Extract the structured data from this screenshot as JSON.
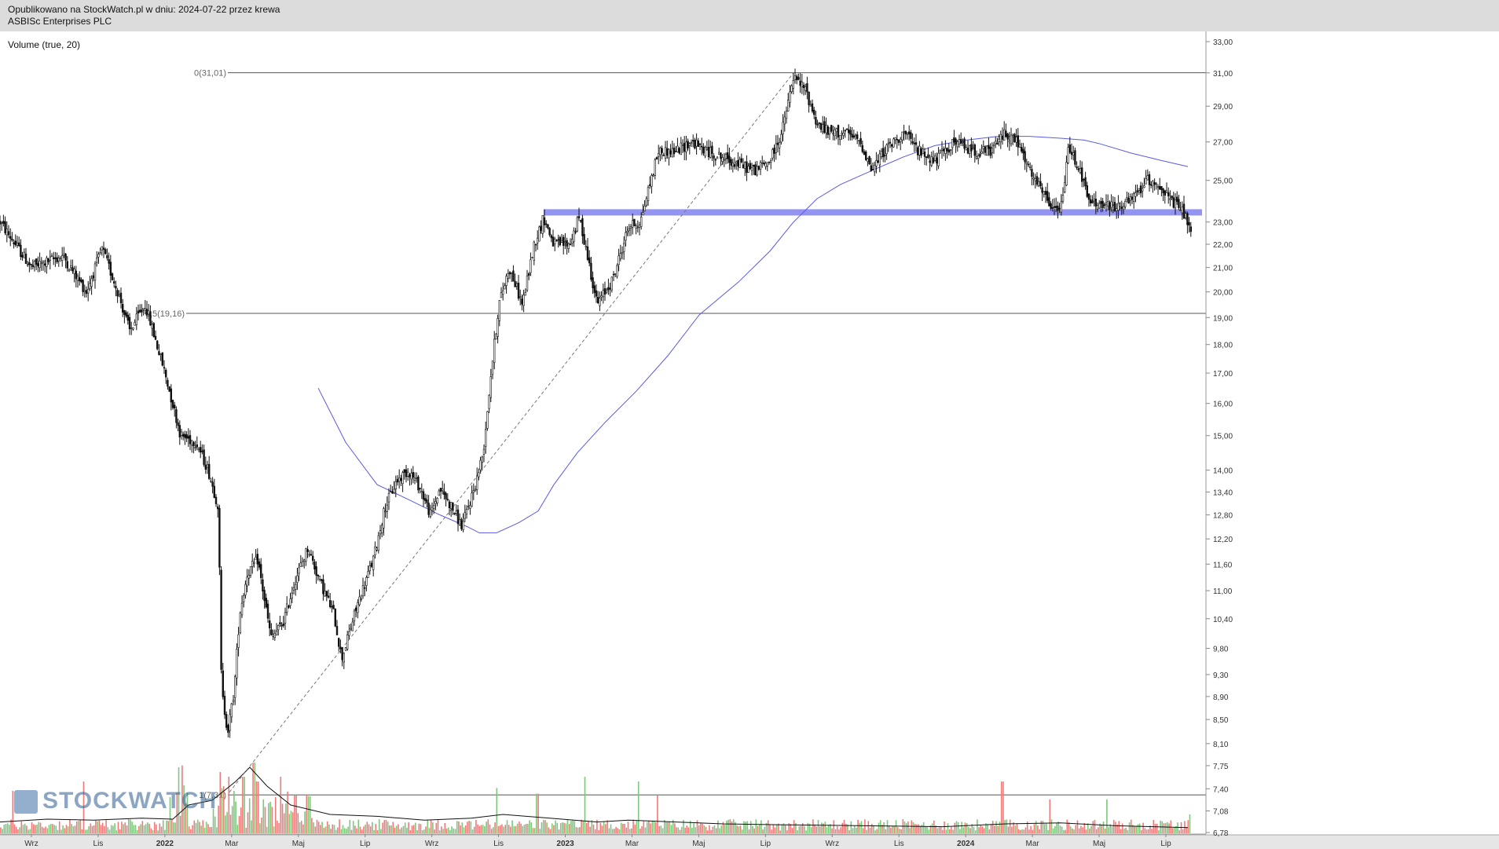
{
  "header": {
    "publication": "Opublikowano na StockWatch.pl w dniu: 2024-07-22 przez krewa",
    "instrument": "ASBISc Enterprises PLC"
  },
  "indicator_label": "Volume (true, 20)",
  "watermark": "STOCKWATCH",
  "colors": {
    "candle": "#111111",
    "ma": "#5a5ae6",
    "zone": "#8080f0",
    "vol_up": "#7cc77c",
    "vol_down": "#ee7b7b",
    "fib_line": "#555555",
    "trend": "#777777"
  },
  "chart_data": {
    "type": "candlestick",
    "y_scale": "log",
    "price_axis_ticks": [
      "33,00",
      "31,00",
      "29,00",
      "27,00",
      "25,00",
      "23,00",
      "22,00",
      "21,00",
      "20,00",
      "19,00",
      "18,00",
      "17,00",
      "16,00",
      "15,00",
      "14,00",
      "13,40",
      "12,80",
      "12,20",
      "11,60",
      "11,00",
      "10,40",
      "9,80",
      "9,30",
      "8,90",
      "8,50",
      "8,10",
      "7,75",
      "7,40",
      "7,08",
      "6,78"
    ],
    "time_axis_labels": [
      "Wrz",
      "Lis",
      "2022",
      "Mar",
      "Maj",
      "Lip",
      "Wrz",
      "Lis",
      "2023",
      "Mar",
      "Maj",
      "Lip",
      "Wrz",
      "Lis",
      "2024",
      "Mar",
      "Maj",
      "Lip"
    ],
    "fib_levels": [
      {
        "label": "0(31,01)",
        "value": 31.01
      },
      {
        "label": "0,5(19,16)",
        "value": 19.16
      },
      {
        "label": "1(7,31)",
        "value": 7.31
      }
    ],
    "support_zone": {
      "from_date": "2022-12",
      "value": 23.45
    },
    "price_anchors": [
      [
        0,
        23.0
      ],
      [
        40,
        21.0
      ],
      [
        80,
        21.5
      ],
      [
        110,
        20.0
      ],
      [
        130,
        21.8
      ],
      [
        150,
        20.0
      ],
      [
        165,
        18.5
      ],
      [
        185,
        19.5
      ],
      [
        210,
        17.0
      ],
      [
        230,
        15.0
      ],
      [
        250,
        14.8
      ],
      [
        265,
        14.0
      ],
      [
        278,
        13.0
      ],
      [
        282,
        9.0
      ],
      [
        290,
        8.3
      ],
      [
        298,
        9.0
      ],
      [
        305,
        10.5
      ],
      [
        315,
        11.4
      ],
      [
        328,
        11.7
      ],
      [
        345,
        10.0
      ],
      [
        360,
        10.3
      ],
      [
        375,
        11.2
      ],
      [
        392,
        12.0
      ],
      [
        405,
        11.3
      ],
      [
        425,
        10.5
      ],
      [
        435,
        9.6
      ],
      [
        455,
        10.7
      ],
      [
        475,
        11.7
      ],
      [
        490,
        13.0
      ],
      [
        505,
        13.7
      ],
      [
        520,
        14.0
      ],
      [
        535,
        13.5
      ],
      [
        548,
        12.8
      ],
      [
        560,
        13.5
      ],
      [
        575,
        13.0
      ],
      [
        588,
        12.5
      ],
      [
        605,
        13.6
      ],
      [
        615,
        14.5
      ],
      [
        625,
        17.0
      ],
      [
        635,
        19.5
      ],
      [
        648,
        21.0
      ],
      [
        665,
        19.5
      ],
      [
        680,
        22.0
      ],
      [
        692,
        23.2
      ],
      [
        705,
        22.0
      ],
      [
        725,
        22.0
      ],
      [
        737,
        23.2
      ],
      [
        745,
        22.0
      ],
      [
        760,
        19.5
      ],
      [
        780,
        20.5
      ],
      [
        800,
        22.8
      ],
      [
        815,
        23.0
      ],
      [
        825,
        24.5
      ],
      [
        838,
        26.5
      ],
      [
        860,
        26.5
      ],
      [
        880,
        27.0
      ],
      [
        900,
        26.5
      ],
      [
        930,
        26.0
      ],
      [
        960,
        25.5
      ],
      [
        980,
        26.0
      ],
      [
        995,
        27.5
      ],
      [
        1010,
        30.7
      ],
      [
        1025,
        30.0
      ],
      [
        1040,
        28.0
      ],
      [
        1055,
        27.5
      ],
      [
        1075,
        27.5
      ],
      [
        1095,
        27.0
      ],
      [
        1110,
        25.5
      ],
      [
        1125,
        26.5
      ],
      [
        1150,
        27.5
      ],
      [
        1170,
        26.5
      ],
      [
        1190,
        26.0
      ],
      [
        1215,
        27.0
      ],
      [
        1240,
        26.5
      ],
      [
        1262,
        26.5
      ],
      [
        1278,
        27.5
      ],
      [
        1295,
        27.0
      ],
      [
        1310,
        25.5
      ],
      [
        1325,
        24.5
      ],
      [
        1342,
        23.5
      ],
      [
        1352,
        23.8
      ],
      [
        1360,
        26.8
      ],
      [
        1375,
        25.5
      ],
      [
        1385,
        24.0
      ],
      [
        1400,
        23.8
      ],
      [
        1420,
        23.7
      ],
      [
        1440,
        24.0
      ],
      [
        1460,
        25.0
      ],
      [
        1475,
        24.8
      ],
      [
        1490,
        24.0
      ],
      [
        1505,
        23.5
      ],
      [
        1512,
        23.0
      ],
      [
        1516,
        22.3
      ]
    ],
    "moving_average": [
      [
        405,
        16.5
      ],
      [
        440,
        14.8
      ],
      [
        480,
        13.6
      ],
      [
        520,
        13.2
      ],
      [
        560,
        12.8
      ],
      [
        595,
        12.5
      ],
      [
        610,
        12.35
      ],
      [
        632,
        12.35
      ],
      [
        660,
        12.6
      ],
      [
        685,
        12.9
      ],
      [
        705,
        13.6
      ],
      [
        735,
        14.5
      ],
      [
        770,
        15.4
      ],
      [
        810,
        16.4
      ],
      [
        850,
        17.6
      ],
      [
        890,
        19.1
      ],
      [
        940,
        20.4
      ],
      [
        980,
        21.7
      ],
      [
        1010,
        23.0
      ],
      [
        1040,
        24.1
      ],
      [
        1070,
        24.8
      ],
      [
        1110,
        25.5
      ],
      [
        1150,
        26.2
      ],
      [
        1190,
        26.8
      ],
      [
        1230,
        27.1
      ],
      [
        1270,
        27.3
      ],
      [
        1310,
        27.3
      ],
      [
        1350,
        27.2
      ],
      [
        1380,
        27.1
      ],
      [
        1400,
        26.9
      ],
      [
        1440,
        26.4
      ],
      [
        1480,
        26.0
      ],
      [
        1512,
        25.7
      ]
    ],
    "volume_ma": [
      [
        0,
        0.12
      ],
      [
        60,
        0.15
      ],
      [
        120,
        0.14
      ],
      [
        180,
        0.16
      ],
      [
        220,
        0.15
      ],
      [
        240,
        0.3
      ],
      [
        270,
        0.35
      ],
      [
        300,
        0.55
      ],
      [
        318,
        0.7
      ],
      [
        340,
        0.5
      ],
      [
        370,
        0.3
      ],
      [
        420,
        0.2
      ],
      [
        480,
        0.18
      ],
      [
        540,
        0.14
      ],
      [
        600,
        0.16
      ],
      [
        640,
        0.2
      ],
      [
        700,
        0.16
      ],
      [
        760,
        0.12
      ],
      [
        800,
        0.14
      ],
      [
        860,
        0.12
      ],
      [
        920,
        0.1
      ],
      [
        1000,
        0.09
      ],
      [
        1100,
        0.08
      ],
      [
        1200,
        0.07
      ],
      [
        1280,
        0.1
      ],
      [
        1350,
        0.11
      ],
      [
        1420,
        0.08
      ],
      [
        1512,
        0.06
      ]
    ],
    "volume_spikes": [
      [
        17,
        0.45
      ],
      [
        107,
        0.55
      ],
      [
        227,
        0.7
      ],
      [
        232,
        0.72
      ],
      [
        280,
        0.65
      ],
      [
        285,
        0.5
      ],
      [
        292,
        0.6
      ],
      [
        298,
        0.45
      ],
      [
        310,
        0.6
      ],
      [
        323,
        0.75
      ],
      [
        328,
        0.55
      ],
      [
        358,
        0.6
      ],
      [
        376,
        0.4
      ],
      [
        633,
        0.48
      ],
      [
        684,
        0.42
      ],
      [
        745,
        0.6
      ],
      [
        813,
        0.55
      ],
      [
        837,
        0.4
      ],
      [
        1276,
        0.55
      ],
      [
        1337,
        0.36
      ],
      [
        1409,
        0.36
      ],
      [
        1515,
        0.2
      ]
    ]
  }
}
